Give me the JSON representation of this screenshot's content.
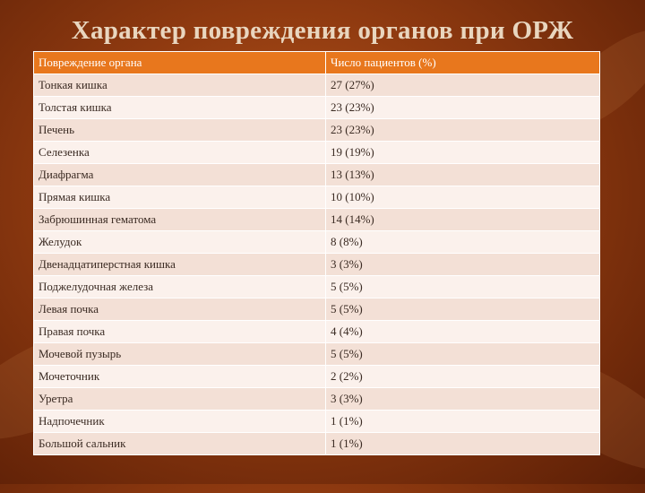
{
  "slide": {
    "title": "Характер повреждения органов при ОРЖ"
  },
  "table": {
    "headers": [
      "Повреждение органа",
      "Число пациентов (%)"
    ],
    "rows": [
      {
        "organ": "Тонкая кишка",
        "count": "27 (27%)"
      },
      {
        "organ": "Толстая кишка",
        "count": "23 (23%)"
      },
      {
        "organ": "Печень",
        "count": "23 (23%)"
      },
      {
        "organ": "Селезенка",
        "count": "19 (19%)"
      },
      {
        "organ": "Диафрагма",
        "count": "13 (13%)"
      },
      {
        "organ": "Прямая кишка",
        "count": "10 (10%)"
      },
      {
        "organ": "Забрюшинная гематома",
        "count": "14 (14%)"
      },
      {
        "organ": "Желудок",
        "count": "8 (8%)"
      },
      {
        "organ": "Двенадцатиперстная кишка",
        "count": "3 (3%)"
      },
      {
        "organ": "Поджелудочная железа",
        "count": "5 (5%)"
      },
      {
        "organ": "Левая почка",
        "count": "5 (5%)"
      },
      {
        "organ": "Правая почка",
        "count": "4 (4%)"
      },
      {
        "organ": "Мочевой пузырь",
        "count": "5 (5%)"
      },
      {
        "organ": "Мочеточник",
        "count": "2 (2%)"
      },
      {
        "organ": "Уретра",
        "count": "3 (3%)"
      },
      {
        "organ": "Надпочечник",
        "count": "1 (1%)"
      },
      {
        "organ": "Большой сальник",
        "count": "1 (1%)"
      }
    ]
  },
  "colors": {
    "header_bg": "#e8771d",
    "row_odd": "#f3e0d6",
    "row_even": "#fbf1ec",
    "title": "#e9d6bf"
  }
}
